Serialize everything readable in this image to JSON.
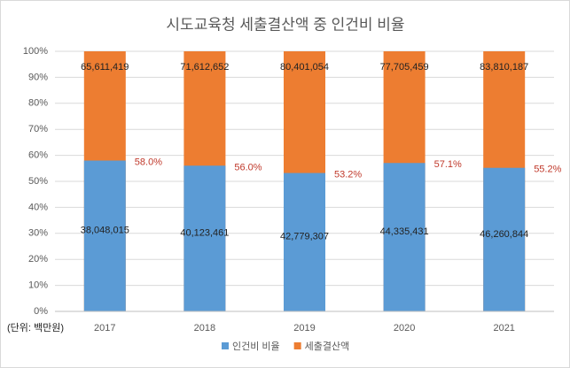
{
  "chart_data": {
    "type": "stacked_bar_100",
    "title": "시도교육청 세출결산액 중 인건비 비율",
    "unit_note": "(단위: 백만원)",
    "categories": [
      "2017",
      "2018",
      "2019",
      "2020",
      "2021"
    ],
    "series": [
      {
        "name": "인건비 비율",
        "color": "#5b9bd5",
        "values": [
          38048015,
          40123461,
          42779307,
          44335431,
          46260844
        ],
        "value_labels": [
          "38,048,015",
          "40,123,461",
          "42,779,307",
          "44,335,431",
          "46,260,844"
        ]
      },
      {
        "name": "세출결산액",
        "color": "#ed7d31",
        "values": [
          65611419,
          71612652,
          80401054,
          77705459,
          83810187
        ],
        "value_labels": [
          "65,611,419",
          "71,612,652",
          "80,401,054",
          "77,705,459",
          "83,810,187"
        ]
      }
    ],
    "ratio": {
      "values": [
        58.0,
        56.0,
        53.2,
        57.1,
        55.2
      ],
      "value_labels": [
        "58.0%",
        "56.0%",
        "53.2%",
        "57.1%",
        "55.2%"
      ]
    },
    "ylim": [
      0,
      100
    ],
    "yticks": [
      {
        "value": 0,
        "label": "0%"
      },
      {
        "value": 10,
        "label": "10%"
      },
      {
        "value": 20,
        "label": "20%"
      },
      {
        "value": 30,
        "label": "30%"
      },
      {
        "value": 40,
        "label": "40%"
      },
      {
        "value": 50,
        "label": "50%"
      },
      {
        "value": 60,
        "label": "60%"
      },
      {
        "value": 70,
        "label": "70%"
      },
      {
        "value": 80,
        "label": "80%"
      },
      {
        "value": 90,
        "label": "90%"
      },
      {
        "value": 100,
        "label": "100%"
      }
    ],
    "grid": true,
    "legend": "bottom"
  }
}
